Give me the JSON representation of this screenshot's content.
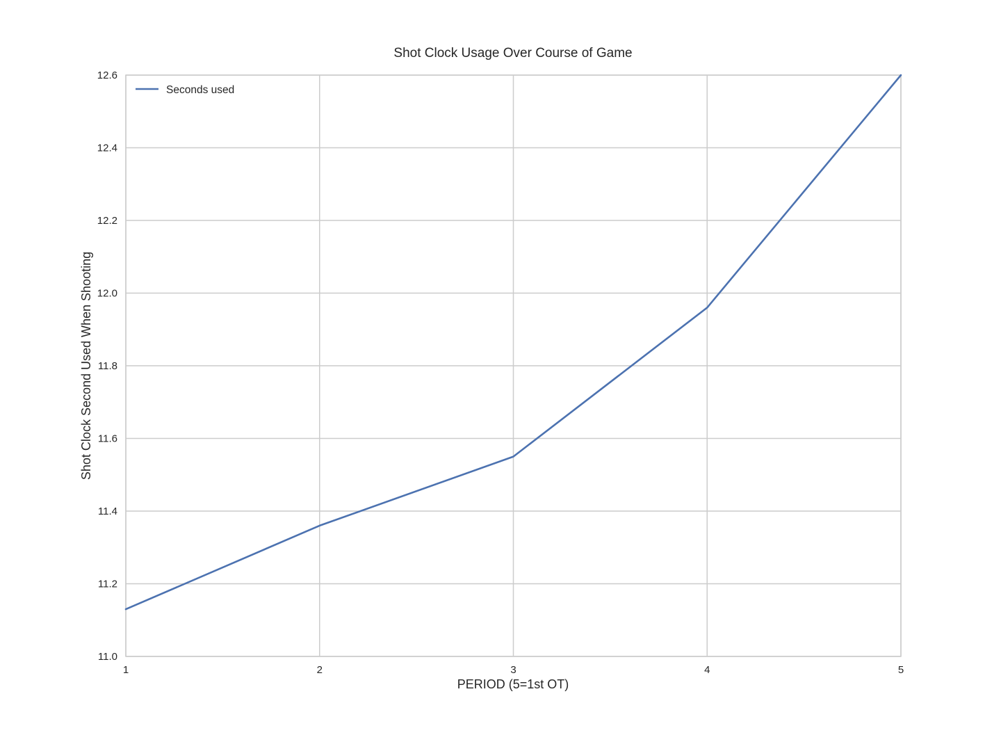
{
  "chart_data": {
    "type": "line",
    "title": "Shot Clock Usage Over Course of Game",
    "xlabel": "PERIOD (5=1st OT)",
    "ylabel": "Shot Clock Second Used When Shooting",
    "x": [
      1,
      2,
      3,
      4,
      5
    ],
    "xlim": [
      1,
      5
    ],
    "ylim": [
      11.0,
      12.6
    ],
    "x_ticks": [
      "1",
      "2",
      "3",
      "4",
      "5"
    ],
    "y_ticks": [
      "11.0",
      "11.2",
      "11.4",
      "11.6",
      "11.8",
      "12.0",
      "12.2",
      "12.4",
      "12.6"
    ],
    "grid": true,
    "legend_position": "top-left",
    "series": [
      {
        "name": "Seconds used",
        "color": "#4c72b0",
        "values": [
          11.13,
          11.36,
          11.55,
          11.96,
          12.6
        ]
      }
    ]
  }
}
